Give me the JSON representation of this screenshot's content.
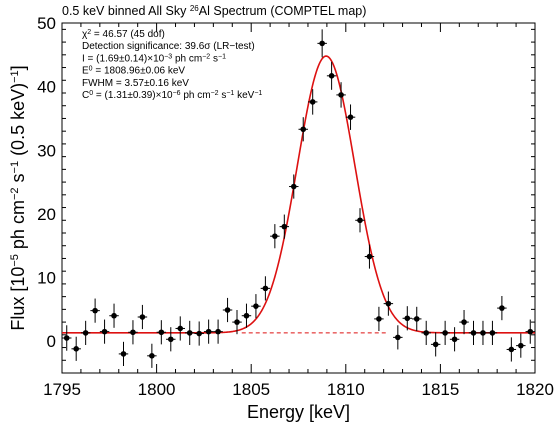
{
  "chart_data": {
    "type": "scatter",
    "title_parts": [
      "0.5 keV binned All Sky ",
      "26",
      "Al Spectrum (COMPTEL map)"
    ],
    "xlabel": "Energy [keV]",
    "ylabel_parts": [
      "Flux [10",
      "−5",
      " ph cm",
      "−2",
      " s",
      "−1",
      " (0.5 keV)",
      "−1",
      "]"
    ],
    "xlim": [
      1795,
      1820
    ],
    "ylim": [
      -5,
      50
    ],
    "xticks": [
      1795,
      1800,
      1805,
      1810,
      1815,
      1820
    ],
    "yticks": [
      0,
      10,
      20,
      30,
      40,
      50
    ],
    "grid": false,
    "colors": {
      "fit": "#dd1111",
      "data": "#000000"
    },
    "annotations": [
      [
        "χ",
        "2",
        " = 46.57 (45 dof)"
      ],
      [
        "Detection significance: 39.6σ (LR−test)"
      ],
      [
        "I = (1.69±0.14)×10",
        "−3",
        " ph cm",
        "−2",
        " s",
        "−1"
      ],
      [
        "E",
        "0",
        " = 1808.96±0.06 keV"
      ],
      [
        "FWHM = 3.57±0.16 keV"
      ],
      [
        "C",
        "0",
        " = (1.31±0.39)×10",
        "−6",
        " ph cm",
        "−2",
        " s",
        "−1",
        " keV",
        "−1"
      ]
    ],
    "fit": {
      "model": "gaussian+constant",
      "E0": 1808.96,
      "FWHM": 3.57,
      "peak": 44.8,
      "continuum": 1.31
    },
    "series": [
      {
        "x_err": 0.25,
        "points": [
          [
            1795.25,
            0.5,
            2.0
          ],
          [
            1795.75,
            -1.2,
            1.9
          ],
          [
            1796.25,
            1.3,
            1.9
          ],
          [
            1796.75,
            4.8,
            1.9
          ],
          [
            1797.25,
            1.5,
            1.9
          ],
          [
            1797.75,
            4.0,
            1.9
          ],
          [
            1798.25,
            -2.0,
            1.9
          ],
          [
            1798.75,
            1.4,
            1.9
          ],
          [
            1799.25,
            3.8,
            1.9
          ],
          [
            1799.75,
            -2.3,
            1.9
          ],
          [
            1800.25,
            1.4,
            1.9
          ],
          [
            1800.75,
            0.3,
            1.9
          ],
          [
            1801.25,
            2.0,
            1.9
          ],
          [
            1801.75,
            1.3,
            1.9
          ],
          [
            1802.25,
            1.2,
            1.9
          ],
          [
            1802.75,
            1.5,
            1.9
          ],
          [
            1803.25,
            1.5,
            1.9
          ],
          [
            1803.75,
            4.9,
            1.9
          ],
          [
            1804.25,
            3.0,
            1.9
          ],
          [
            1804.75,
            4.0,
            1.9
          ],
          [
            1805.25,
            5.5,
            1.9
          ],
          [
            1805.75,
            8.3,
            1.9
          ],
          [
            1806.25,
            16.5,
            1.9
          ],
          [
            1806.75,
            18.0,
            1.9
          ],
          [
            1807.25,
            24.3,
            1.9
          ],
          [
            1807.75,
            33.3,
            1.9
          ],
          [
            1808.25,
            37.6,
            2.0
          ],
          [
            1808.75,
            46.8,
            2.2
          ],
          [
            1809.25,
            41.7,
            2.2
          ],
          [
            1809.75,
            38.7,
            2.0
          ],
          [
            1810.25,
            35.2,
            2.0
          ],
          [
            1810.75,
            19.0,
            1.9
          ],
          [
            1811.25,
            13.3,
            1.9
          ],
          [
            1811.75,
            3.5,
            1.9
          ],
          [
            1812.25,
            5.9,
            1.9
          ],
          [
            1812.75,
            0.6,
            1.9
          ],
          [
            1813.25,
            3.6,
            1.9
          ],
          [
            1813.75,
            3.5,
            1.9
          ],
          [
            1814.25,
            1.3,
            1.9
          ],
          [
            1814.75,
            -0.5,
            1.9
          ],
          [
            1815.25,
            1.3,
            1.9
          ],
          [
            1815.75,
            0.3,
            1.9
          ],
          [
            1816.25,
            3.0,
            1.9
          ],
          [
            1816.75,
            1.3,
            1.9
          ],
          [
            1817.25,
            1.3,
            1.9
          ],
          [
            1817.75,
            1.3,
            1.9
          ],
          [
            1818.25,
            5.2,
            1.9
          ],
          [
            1818.75,
            -1.3,
            1.9
          ],
          [
            1819.25,
            -0.7,
            1.9
          ],
          [
            1819.75,
            1.5,
            1.9
          ]
        ]
      }
    ]
  }
}
